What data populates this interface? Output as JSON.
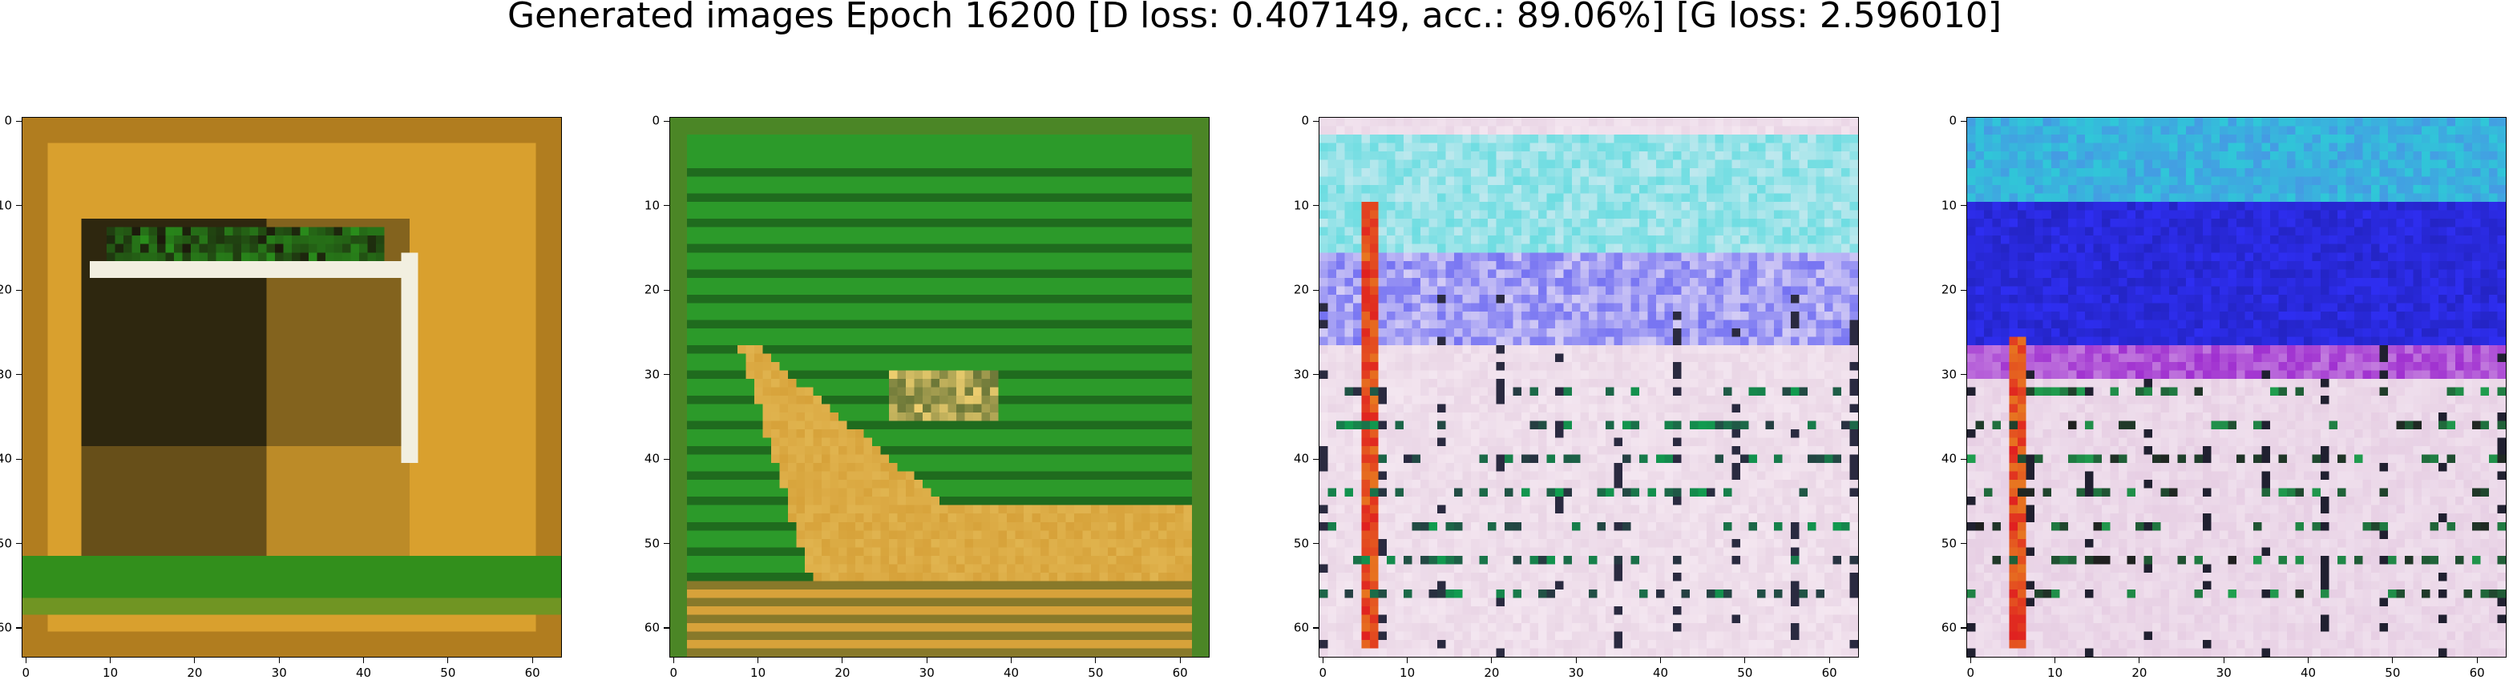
{
  "figure": {
    "title": "Generated images Epoch 16200 [D loss: 0.407149, acc.: 89.06%] [G loss: 2.596010]"
  },
  "axes": {
    "x_ticks": [
      "0",
      "10",
      "20",
      "30",
      "40",
      "50",
      "60"
    ],
    "y_ticks": [
      "0",
      "10",
      "20",
      "30",
      "40",
      "50",
      "60"
    ],
    "xlim": [
      -0.5,
      63.5
    ],
    "ylim": [
      63.5,
      -0.5
    ],
    "grid": false
  },
  "images": [
    {
      "id": "sample-1",
      "description": "64x64 generated image: orange/yellow border, dark square with white frame, green bottom band",
      "palette": {
        "base": "#d9a02e",
        "dark": "#1c1a0c",
        "accent": "#2a8f1c",
        "light": "#f2efe0"
      }
    },
    {
      "id": "sample-2",
      "description": "64x64 generated image: green field with horizontal dark stripes, yellow-orange lower region",
      "palette": {
        "base": "#2c9a2a",
        "dark": "#123c12",
        "accent": "#d7a23a",
        "light": "#f0d070"
      }
    },
    {
      "id": "sample-3",
      "description": "64x64 generated image: pale pink/white texture, cyan/blue upper band, red vertical stripe on left",
      "palette": {
        "base": "#ead6e6",
        "dark": "#2a2a40",
        "accent": "#30d4d8",
        "light": "#fbf2f8"
      }
    },
    {
      "id": "sample-4",
      "description": "64x64 generated image: deep blue upper region, cyan top, pale pink lower region with stripes",
      "palette": {
        "base": "#e7cfe4",
        "dark": "#1d1ea8",
        "accent": "#2f2ff2",
        "light": "#f6ecf4"
      }
    }
  ]
}
